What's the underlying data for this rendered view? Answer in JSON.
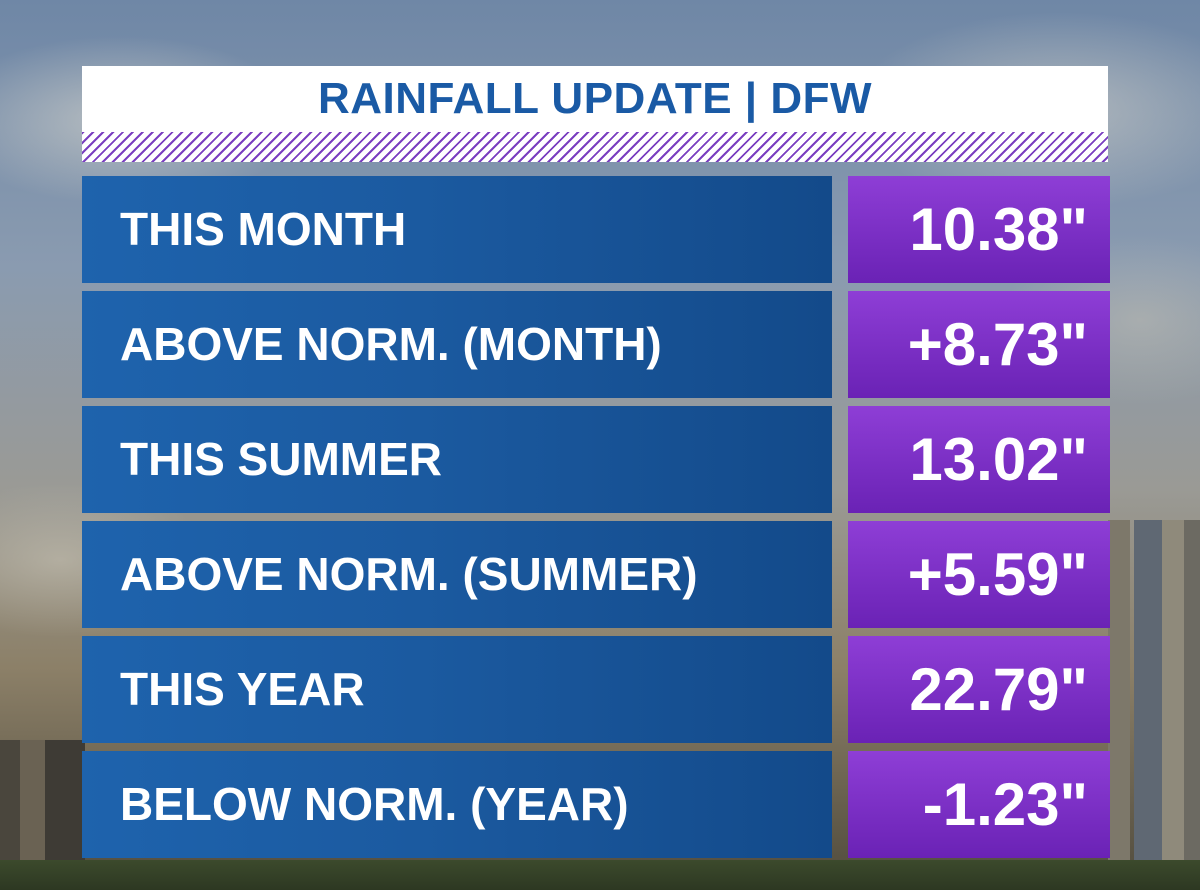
{
  "header": {
    "title": "RAINFALL UPDATE | DFW"
  },
  "rows": [
    {
      "label": "THIS MONTH",
      "value": "10.38\""
    },
    {
      "label": "ABOVE NORM. (MONTH)",
      "value": "+8.73\""
    },
    {
      "label": "THIS SUMMER",
      "value": "13.02\""
    },
    {
      "label": "ABOVE NORM. (SUMMER)",
      "value": "+5.59\""
    },
    {
      "label": "THIS YEAR",
      "value": "22.79\""
    },
    {
      "label": "BELOW NORM. (YEAR)",
      "value": "-1.23\""
    }
  ],
  "colors": {
    "title_blue": "#1a5aa5",
    "label_blue": "#1b5aa0",
    "value_purple": "#7a30c5",
    "stripe_purple": "#7a3fc0"
  }
}
